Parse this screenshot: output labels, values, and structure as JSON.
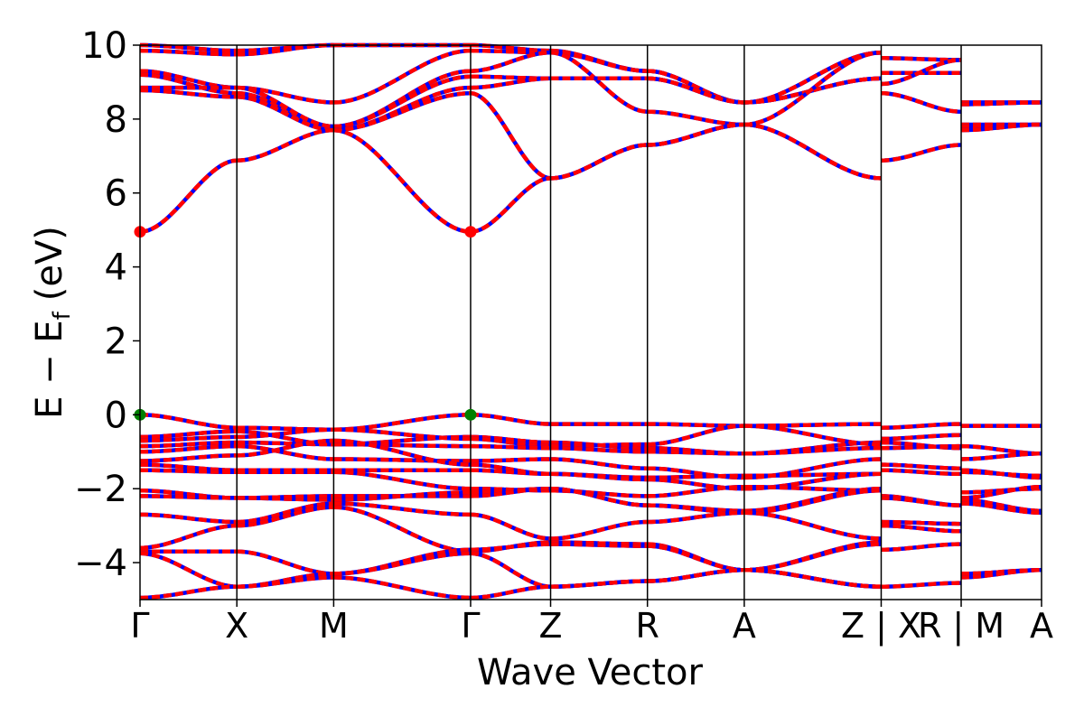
{
  "chart_data": {
    "type": "line",
    "title": "",
    "xlabel": "Wave Vector",
    "ylabel_main": "E − E",
    "ylabel_sub": "f",
    "ylabel_unit": "(eV)",
    "ylim": [
      -5,
      10
    ],
    "yticks": [
      {
        "value": -4,
        "label": "−4"
      },
      {
        "value": -2,
        "label": "−2"
      },
      {
        "value": 0,
        "label": "0"
      },
      {
        "value": 2,
        "label": "2"
      },
      {
        "value": 4,
        "label": "4"
      },
      {
        "value": 6,
        "label": "6"
      },
      {
        "value": 8,
        "label": "8"
      },
      {
        "value": 10,
        "label": "10"
      }
    ],
    "kpoints": [
      {
        "k": 0.0,
        "label": "Γ"
      },
      {
        "k": 1.0,
        "label": "X"
      },
      {
        "k": 2.0,
        "label": "M"
      },
      {
        "k": 3.414,
        "label": "Γ"
      },
      {
        "k": 4.24,
        "label": "Z"
      },
      {
        "k": 5.24,
        "label": "R"
      },
      {
        "k": 6.24,
        "label": "A"
      },
      {
        "k": 7.654,
        "label": "Z | X"
      },
      {
        "k": 8.48,
        "label": "R | M"
      },
      {
        "k": 9.31,
        "label": "A"
      }
    ],
    "xlim": [
      0,
      9.31
    ],
    "line_colors": {
      "primary": "#ff0000",
      "secondary": "#0000ff"
    },
    "marker_colors": {
      "cbm": "#ff0000",
      "vbm": "#008000"
    },
    "special_points": [
      {
        "k": 0.0,
        "energy": 4.95,
        "kind": "cbm"
      },
      {
        "k": 3.414,
        "energy": 4.95,
        "kind": "cbm"
      },
      {
        "k": 0.0,
        "energy": 0.0,
        "kind": "vbm"
      },
      {
        "k": 3.414,
        "energy": 0.0,
        "kind": "vbm"
      }
    ],
    "segments": [
      {
        "from": "Γ",
        "to": "X",
        "bands": [
          [
            10.0,
            9.85
          ],
          [
            9.85,
            9.75
          ],
          [
            9.3,
            8.85
          ],
          [
            9.2,
            8.7
          ],
          [
            8.85,
            8.85
          ],
          [
            8.78,
            8.6
          ],
          [
            4.95,
            6.88
          ],
          [
            0.0,
            -0.35
          ],
          [
            -0.6,
            -0.45
          ],
          [
            -0.7,
            -0.6
          ],
          [
            -0.85,
            -0.75
          ],
          [
            -1.0,
            -0.85
          ],
          [
            -1.25,
            -1.1
          ],
          [
            -1.35,
            -1.5
          ],
          [
            -1.5,
            -1.55
          ],
          [
            -2.05,
            -2.25
          ],
          [
            -2.2,
            -2.25
          ],
          [
            -2.7,
            -2.9
          ],
          [
            -3.6,
            -3.0
          ],
          [
            -3.7,
            -3.7
          ],
          [
            -3.75,
            -4.65
          ],
          [
            -4.95,
            -4.65
          ]
        ]
      },
      {
        "from": "X",
        "to": "M",
        "bands": [
          [
            9.85,
            10.0
          ],
          [
            9.75,
            10.0
          ],
          [
            8.85,
            8.45
          ],
          [
            8.7,
            7.8
          ],
          [
            8.85,
            7.8
          ],
          [
            8.6,
            7.7
          ],
          [
            6.88,
            7.7
          ],
          [
            -0.35,
            -0.4
          ],
          [
            -0.45,
            -0.8
          ],
          [
            -0.6,
            -0.4
          ],
          [
            -0.75,
            -0.8
          ],
          [
            -0.85,
            -1.2
          ],
          [
            -1.1,
            -0.7
          ],
          [
            -1.5,
            -1.5
          ],
          [
            -1.55,
            -1.55
          ],
          [
            -2.25,
            -2.3
          ],
          [
            -2.25,
            -2.2
          ],
          [
            -2.9,
            -2.4
          ],
          [
            -3.0,
            -2.5
          ],
          [
            -3.7,
            -4.3
          ],
          [
            -4.65,
            -4.3
          ],
          [
            -4.65,
            -4.4
          ]
        ]
      },
      {
        "from": "M",
        "to": "Γ",
        "bands": [
          [
            10.0,
            10.0
          ],
          [
            8.45,
            9.85
          ],
          [
            7.8,
            9.3
          ],
          [
            7.8,
            9.15
          ],
          [
            7.7,
            8.85
          ],
          [
            7.7,
            8.7
          ],
          [
            7.7,
            4.95
          ],
          [
            -0.4,
            0.0
          ],
          [
            -0.8,
            -0.6
          ],
          [
            -0.4,
            -0.65
          ],
          [
            -0.8,
            -0.85
          ],
          [
            -1.2,
            -1.25
          ],
          [
            -0.7,
            -1.35
          ],
          [
            -1.5,
            -1.5
          ],
          [
            -1.55,
            -2.0
          ],
          [
            -2.3,
            -2.1
          ],
          [
            -2.2,
            -2.2
          ],
          [
            -2.4,
            -2.7
          ],
          [
            -2.5,
            -3.7
          ],
          [
            -4.3,
            -3.65
          ],
          [
            -4.3,
            -3.75
          ],
          [
            -4.4,
            -4.95
          ]
        ]
      },
      {
        "from": "Γ",
        "to": "Z",
        "bands": [
          [
            10.0,
            9.85
          ],
          [
            9.85,
            9.8
          ],
          [
            9.3,
            9.8
          ],
          [
            9.15,
            9.1
          ],
          [
            8.85,
            9.1
          ],
          [
            8.7,
            6.4
          ],
          [
            4.95,
            6.4
          ],
          [
            0.0,
            -0.25
          ],
          [
            -0.6,
            -0.75
          ],
          [
            -0.65,
            -0.85
          ],
          [
            -0.85,
            -0.9
          ],
          [
            -1.25,
            -1.2
          ],
          [
            -1.35,
            -1.6
          ],
          [
            -1.5,
            -1.6
          ],
          [
            -2.0,
            -2.05
          ],
          [
            -2.1,
            -2.0
          ],
          [
            -2.2,
            -2.0
          ],
          [
            -2.7,
            -3.35
          ],
          [
            -3.7,
            -3.45
          ],
          [
            -3.65,
            -3.5
          ],
          [
            -3.75,
            -4.65
          ],
          [
            -4.95,
            -4.65
          ]
        ]
      },
      {
        "from": "Z",
        "to": "R",
        "bands": [
          [
            9.85,
            9.3
          ],
          [
            9.8,
            9.3
          ],
          [
            9.8,
            8.2
          ],
          [
            9.1,
            9.1
          ],
          [
            9.1,
            9.1
          ],
          [
            6.4,
            7.3
          ],
          [
            6.4,
            7.3
          ],
          [
            -0.25,
            -0.25
          ],
          [
            -0.75,
            -0.9
          ],
          [
            -0.85,
            -0.8
          ],
          [
            -0.9,
            -1.0
          ],
          [
            -1.2,
            -1.45
          ],
          [
            -1.6,
            -1.7
          ],
          [
            -1.6,
            -1.75
          ],
          [
            -2.05,
            -2.2
          ],
          [
            -2.0,
            -2.45
          ],
          [
            -2.0,
            -2.45
          ],
          [
            -3.35,
            -2.9
          ],
          [
            -3.45,
            -3.5
          ],
          [
            -3.5,
            -3.55
          ],
          [
            -4.65,
            -4.5
          ],
          [
            -4.65,
            -4.5
          ]
        ]
      },
      {
        "from": "R",
        "to": "A",
        "bands": [
          [
            9.3,
            8.45
          ],
          [
            9.3,
            8.45
          ],
          [
            8.2,
            7.85
          ],
          [
            9.1,
            8.45
          ],
          [
            9.1,
            8.45
          ],
          [
            7.3,
            7.85
          ],
          [
            7.3,
            7.85
          ],
          [
            -0.25,
            -0.3
          ],
          [
            -0.9,
            -1.05
          ],
          [
            -0.8,
            -0.3
          ],
          [
            -1.0,
            -1.05
          ],
          [
            -1.45,
            -1.7
          ],
          [
            -1.7,
            -1.65
          ],
          [
            -1.75,
            -2.0
          ],
          [
            -2.2,
            -1.95
          ],
          [
            -2.45,
            -2.6
          ],
          [
            -2.45,
            -2.65
          ],
          [
            -2.9,
            -2.65
          ],
          [
            -3.5,
            -4.2
          ],
          [
            -3.55,
            -4.2
          ],
          [
            -4.5,
            -4.2
          ],
          [
            -4.5,
            -4.2
          ]
        ]
      },
      {
        "from": "A",
        "to": "Z",
        "bands": [
          [
            8.45,
            9.8
          ],
          [
            8.45,
            9.8
          ],
          [
            7.85,
            6.4
          ],
          [
            8.45,
            9.1
          ],
          [
            8.45,
            9.1
          ],
          [
            7.85,
            6.4
          ],
          [
            7.85,
            9.8
          ],
          [
            -0.3,
            -0.25
          ],
          [
            -1.05,
            -0.75
          ],
          [
            -0.3,
            -0.8
          ],
          [
            -1.05,
            -0.9
          ],
          [
            -1.7,
            -1.2
          ],
          [
            -1.65,
            -1.6
          ],
          [
            -2.0,
            -1.6
          ],
          [
            -1.95,
            -2.05
          ],
          [
            -2.6,
            -2.0
          ],
          [
            -2.65,
            -2.05
          ],
          [
            -2.65,
            -3.35
          ],
          [
            -4.2,
            -3.45
          ],
          [
            -4.2,
            -3.5
          ],
          [
            -4.2,
            -4.65
          ],
          [
            -4.2,
            -4.65
          ]
        ]
      },
      {
        "from": "X",
        "to": "R",
        "bands": [
          [
            9.65,
            9.6
          ],
          [
            9.25,
            9.25
          ],
          [
            8.95,
            9.6
          ],
          [
            8.7,
            8.2
          ],
          [
            6.88,
            7.3
          ],
          [
            -0.35,
            -0.25
          ],
          [
            -0.65,
            -0.55
          ],
          [
            -0.75,
            -0.9
          ],
          [
            -0.9,
            -0.85
          ],
          [
            -1.35,
            -1.45
          ],
          [
            -1.5,
            -1.6
          ],
          [
            -2.2,
            -2.45
          ],
          [
            -2.25,
            -2.45
          ],
          [
            -2.9,
            -2.95
          ],
          [
            -3.0,
            -3.15
          ],
          [
            -3.65,
            -3.5
          ],
          [
            -4.65,
            -4.55
          ]
        ]
      },
      {
        "from": "M",
        "to": "A",
        "bands": [
          [
            8.45,
            8.45
          ],
          [
            8.4,
            8.45
          ],
          [
            7.85,
            7.85
          ],
          [
            7.8,
            7.85
          ],
          [
            7.7,
            7.85
          ],
          [
            -0.3,
            -0.3
          ],
          [
            -0.85,
            -1.05
          ],
          [
            -1.2,
            -1.05
          ],
          [
            -1.5,
            -1.7
          ],
          [
            -1.55,
            -1.65
          ],
          [
            -2.1,
            -2.0
          ],
          [
            -2.25,
            -1.95
          ],
          [
            -2.3,
            -2.6
          ],
          [
            -2.4,
            -2.65
          ],
          [
            -4.3,
            -4.2
          ],
          [
            -4.4,
            -4.2
          ]
        ]
      }
    ]
  }
}
